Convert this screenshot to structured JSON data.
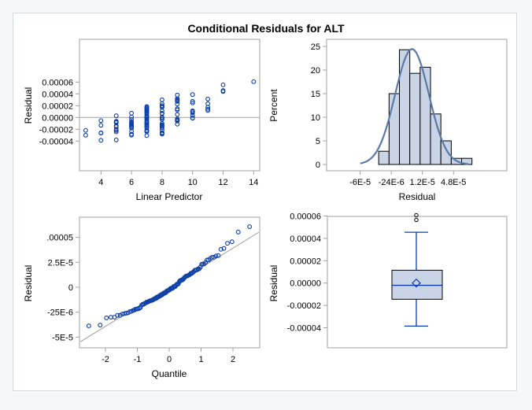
{
  "chart_data": {
    "title": "Conditional Residuals for ALT",
    "plots": [
      {
        "type": "scatter",
        "xlabel": "Linear Predictor",
        "ylabel": "Residual",
        "xticks": [
          4,
          6,
          8,
          10,
          12,
          14
        ],
        "yticks": [
          "0.00006",
          "0.00004",
          "0.00002",
          "0.00000",
          "-0.00002",
          "-0.00004"
        ],
        "reference_line_y": 0,
        "points": [
          [
            3,
            [
              -2.18,
              -3.0
            ]
          ],
          [
            4,
            [
              -0.53,
              -1.33,
              -2.6,
              -2.64,
              -3.87
            ]
          ],
          [
            5,
            [
              0.29,
              -0.64,
              -0.78,
              -0.89,
              -1.38,
              -1.58,
              -2.04,
              -2.2,
              -2.44,
              -3.8
            ]
          ],
          [
            6,
            [
              0.73,
              0.07,
              -0.33,
              -0.73,
              -0.87,
              -1.0,
              -1.13,
              -1.27,
              -1.44,
              -1.62,
              -1.8,
              -2.33,
              -2.82,
              -3.0
            ]
          ],
          [
            7,
            [
              1.84,
              1.71,
              1.56,
              1.4,
              1.22,
              1.07,
              0.89,
              0.67,
              0.29,
              0.18,
              0.07,
              -0.11,
              -0.27,
              -0.6,
              -0.78,
              -0.96,
              -1.16,
              -1.31,
              -1.49,
              -1.71,
              -2.16,
              -2.29,
              -2.42,
              -3.07
            ]
          ],
          [
            8,
            [
              3.0,
              2.33,
              2.02,
              1.84,
              1.71,
              1.13,
              0.73,
              0.64,
              0.07,
              -0.11,
              -0.33,
              -1.0,
              -1.22,
              -1.36,
              -1.49,
              -1.71,
              -2.11,
              -2.56,
              -2.69,
              -2.82
            ]
          ],
          [
            9,
            [
              3.8,
              3.18,
              3.0,
              2.87,
              2.73,
              2.29,
              1.49,
              1.29,
              0.51,
              -0.24,
              -0.38,
              -0.51,
              -0.6,
              -1.13
            ]
          ],
          [
            10,
            [
              3.89,
              2.73,
              2.47,
              1.13,
              1.0,
              0.78,
              0.33,
              -0.07,
              -0.11
            ]
          ],
          [
            11,
            [
              3.13,
              2.33,
              1.73,
              1.4,
              1.18
            ]
          ],
          [
            12,
            [
              5.53,
              4.56,
              4.4
            ]
          ],
          [
            14,
            [
              6.07
            ]
          ]
        ],
        "residual_units": 1e-05
      },
      {
        "type": "bar",
        "xlabel": "Residual",
        "ylabel": "Percent",
        "xticks": [
          "-6E-5",
          "-24E-6",
          "1.2E-5",
          "4.8E-5"
        ],
        "xtick_values": [
          -6e-05,
          -2.4e-05,
          1.2e-05,
          4.8e-05
        ],
        "yticks": [
          0,
          5,
          10,
          15,
          20,
          25
        ],
        "bin_start": -3.86e-05,
        "bin_width": 1.2e-05,
        "values": [
          2.8,
          15,
          24.3,
          19.3,
          20.6,
          10.7,
          5,
          1.3,
          1.3
        ],
        "normal_curve": {
          "mean": 0,
          "std": 1.96e-05
        },
        "bar_color": "#c9d5e6",
        "curve_color": "#5b7aa8"
      },
      {
        "type": "scatter",
        "subtype": "qq",
        "xlabel": "Quantile",
        "ylabel": "Residual",
        "xticks": [
          -2,
          -1,
          0,
          1,
          2
        ],
        "yticks": [
          ".00005",
          "2.5E-5",
          "0",
          "-25E-6",
          "-5E-5"
        ],
        "ytick_values": [
          5e-05,
          2.5e-05,
          0,
          -2.5e-05,
          -5e-05
        ],
        "reference_line": {
          "intercept": 0,
          "slope": 1.96e-05
        }
      },
      {
        "type": "box",
        "ylabel": "Residual",
        "yticks": [
          "0.00006",
          "0.00004",
          "0.00002",
          "0.00000",
          "-0.00002",
          "-0.00004"
        ],
        "box": {
          "q1": -1.45e-05,
          "median": -2e-06,
          "q3": 1.15e-05,
          "mean": 0,
          "whisker_low": -3.85e-05,
          "whisker_high": 4.55e-05,
          "outliers": [
            5.65e-05,
            6.07e-05
          ]
        }
      }
    ],
    "marker_color": "#0b3ea8",
    "ref_color": "#a0a0a0"
  }
}
